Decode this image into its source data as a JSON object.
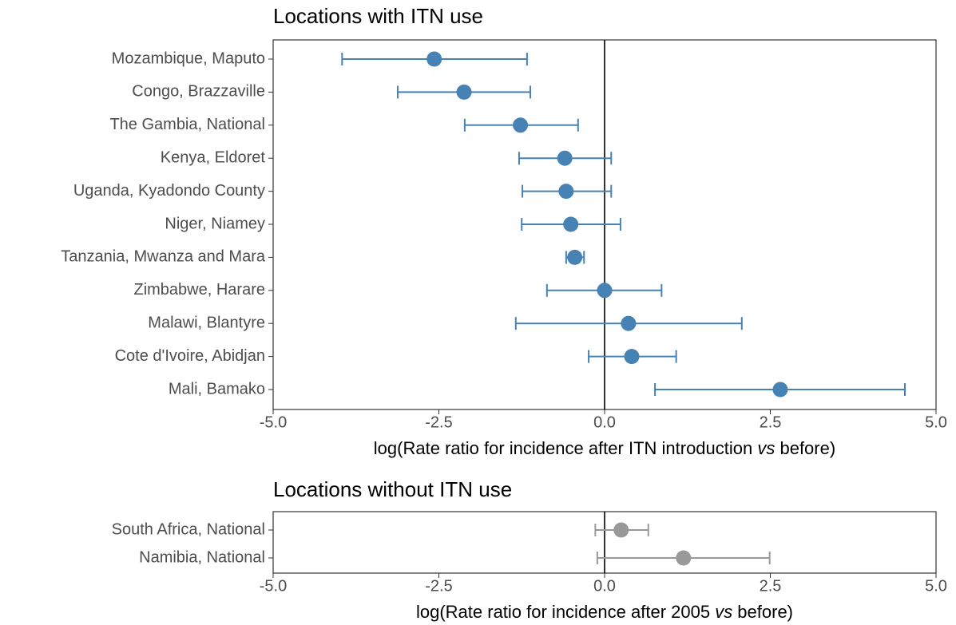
{
  "chart_data": [
    {
      "type": "forest",
      "title": "Locations with ITN use",
      "xlabel": [
        "log(Rate ratio for incidence after ITN introduction ",
        "vs",
        " before)"
      ],
      "xlabel_italic": [
        false,
        true,
        false
      ],
      "categories": [
        "Mozambique, Maputo",
        "Congo, Brazzaville",
        "The Gambia, National",
        "Kenya, Eldoret",
        "Uganda, Kyadondo County",
        "Niger, Niamey",
        "Tanzania, Mwanza and Mara",
        "Zimbabwe, Harare",
        "Malawi, Blantyre",
        "Cote d'Ivoire, Abidjan",
        "Mali, Bamako"
      ],
      "values": [
        -2.57,
        -2.12,
        -1.27,
        -0.6,
        -0.58,
        -0.51,
        -0.45,
        0,
        0.36,
        0.41,
        2.65
      ],
      "lower": [
        -3.96,
        -3.12,
        -2.11,
        -1.29,
        -1.24,
        -1.25,
        -0.58,
        -0.87,
        -1.34,
        -0.24,
        0.76
      ],
      "upper": [
        -1.17,
        -1.12,
        -0.4,
        0.1,
        0.1,
        0.24,
        -0.31,
        0.86,
        2.07,
        1.08,
        4.53
      ],
      "color": "#4682b4",
      "xlim": [
        -5,
        5
      ],
      "xticks": [
        {
          "value": -5,
          "label": "-5.0"
        },
        -2.5,
        {
          "value": 0,
          "label": "0.0"
        },
        2.5,
        {
          "value": 5,
          "label": "5.0"
        }
      ],
      "vline": 0
    },
    {
      "type": "forest",
      "title": "Locations without ITN use",
      "xlabel": [
        "log(Rate ratio for incidence after 2005 ",
        "vs",
        " before)"
      ],
      "xlabel_italic": [
        false,
        true,
        false
      ],
      "categories": [
        "South Africa, National",
        "Namibia, National"
      ],
      "values": [
        0.25,
        1.19
      ],
      "lower": [
        -0.14,
        -0.11
      ],
      "upper": [
        0.66,
        2.49
      ],
      "color": "#999999",
      "xlim": [
        -5,
        5
      ],
      "xticks": [
        {
          "value": -5,
          "label": "-5.0"
        },
        -2.5,
        {
          "value": 0,
          "label": "0.0"
        },
        2.5,
        {
          "value": 5,
          "label": "5.0"
        }
      ],
      "vline": 0
    }
  ]
}
